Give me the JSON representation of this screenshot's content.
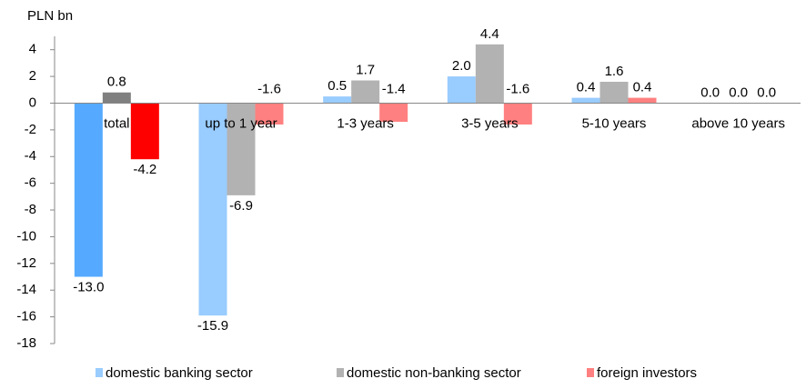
{
  "chart_data": {
    "type": "bar",
    "ylabel": "PLN bn",
    "categories": [
      "total",
      "up to 1 year",
      "1-3 years",
      "3-5 years",
      "5-10 years",
      "above 10 years"
    ],
    "series": [
      {
        "name": "domestic banking sector",
        "color": "#99ccff",
        "colors": [
          "#55aaff",
          "#99ccff",
          "#99ccff",
          "#99ccff",
          "#99ccff",
          "#99ccff"
        ],
        "values": [
          -13.0,
          -15.9,
          0.5,
          2.0,
          0.4,
          0.0
        ],
        "value_labels": [
          "-13.0",
          "-15.9",
          "0.5",
          "2.0",
          "0.4",
          "0.0"
        ]
      },
      {
        "name": "domestic non-banking sector",
        "color": "#b2b2b2",
        "colors": [
          "#808080",
          "#b2b2b2",
          "#b2b2b2",
          "#b2b2b2",
          "#b2b2b2",
          "#b2b2b2"
        ],
        "values": [
          0.8,
          -6.9,
          1.7,
          4.4,
          1.6,
          0.0
        ],
        "value_labels": [
          "0.8",
          "-6.9",
          "1.7",
          "4.4",
          "1.6",
          "0.0"
        ]
      },
      {
        "name": "foreign investors",
        "color": "#ff8080",
        "colors": [
          "#ff0000",
          "#ff8080",
          "#ff8080",
          "#ff8080",
          "#ff8080",
          "#ff8080"
        ],
        "values": [
          -4.2,
          -1.6,
          -1.4,
          -1.6,
          0.4,
          0.0
        ],
        "value_labels": [
          "-4.2",
          "-1.6",
          "-1.4",
          "-1.6",
          "0.4",
          "0.0"
        ]
      }
    ],
    "ylim": [
      -18,
      5
    ],
    "yticks": [
      -18,
      -16,
      -14,
      -12,
      -10,
      -8,
      -6,
      -4,
      -2,
      0,
      2,
      4
    ],
    "grid": false,
    "legend": "bottom"
  }
}
